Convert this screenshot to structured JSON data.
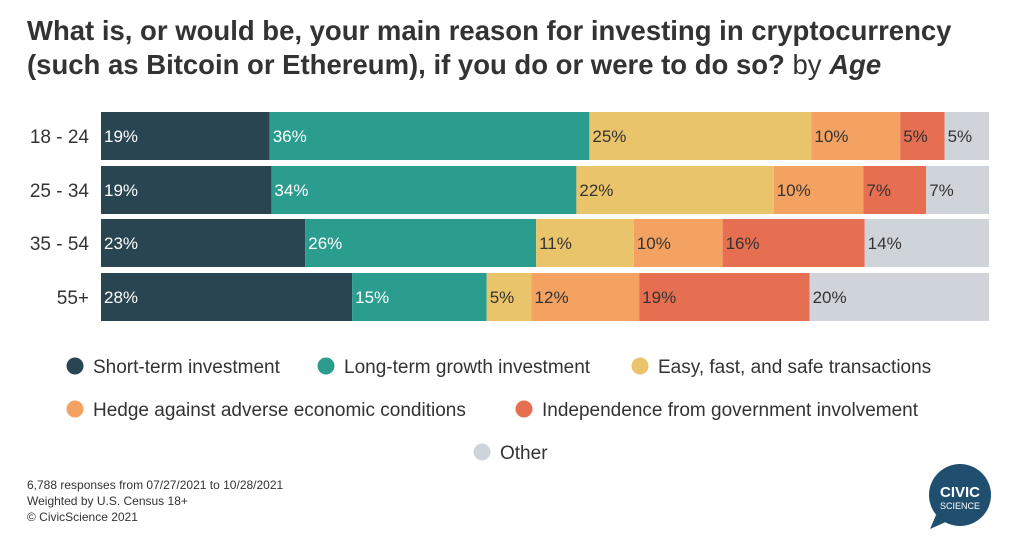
{
  "title": {
    "main": "What is, or would be, your main reason for investing in cryptocurrency (such as Bitcoin or Ethereum), if you do or were to do so?",
    "by": "by",
    "group": "Age"
  },
  "chart_data": {
    "type": "bar",
    "orientation": "horizontal-stacked-100",
    "categories": [
      "18 - 24",
      "25 - 34",
      "35 - 54",
      "55+"
    ],
    "unit": "%",
    "series": [
      {
        "name": "Short-term investment",
        "color": "#2a4552",
        "values": [
          19,
          19,
          23,
          28
        ]
      },
      {
        "name": "Long-term growth investment",
        "color": "#2a9d8f",
        "values": [
          36,
          34,
          26,
          15
        ]
      },
      {
        "name": "Easy, fast, and safe transactions",
        "color": "#e9c46a",
        "values": [
          25,
          22,
          11,
          5
        ]
      },
      {
        "name": "Hedge against adverse economic conditions",
        "color": "#f4a261",
        "values": [
          10,
          10,
          10,
          12
        ]
      },
      {
        "name": "Independence from government involvement",
        "color": "#e76f51",
        "values": [
          5,
          7,
          16,
          19
        ]
      },
      {
        "name": "Other",
        "color": "#cfd3da",
        "values": [
          5,
          7,
          14,
          20
        ]
      }
    ],
    "label_colors": [
      "#ffffff",
      "#ffffff",
      "#333333",
      "#333333",
      "#333333",
      "#333333"
    ],
    "legend_position": "bottom"
  },
  "footer": {
    "line1": "6,788 responses from 07/27/2021 to 10/28/2021",
    "line2": "Weighted by U.S. Census 18+",
    "line3": "© CivicScience 2021"
  },
  "logo": {
    "line1": "CIVIC",
    "line2": "SCIENCE",
    "color": "#1f4e6e"
  }
}
